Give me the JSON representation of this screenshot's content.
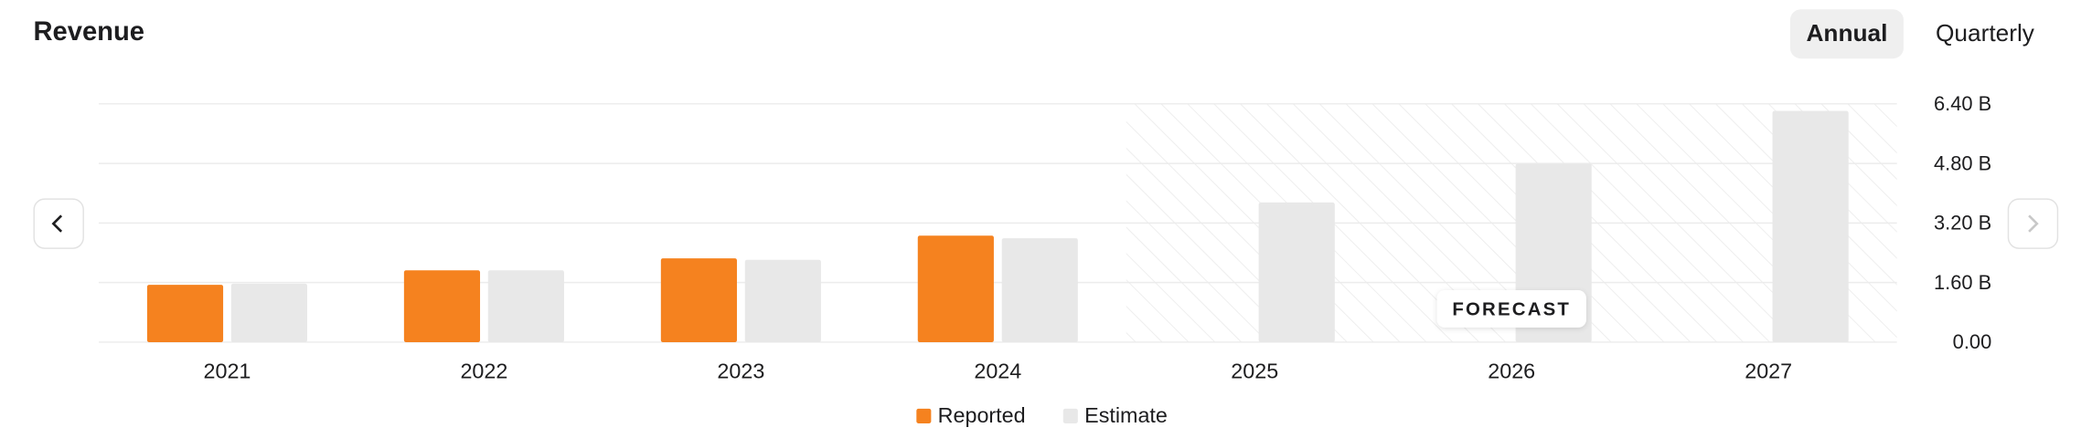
{
  "header": {
    "title": "Revenue",
    "tabs": [
      "Annual",
      "Quarterly"
    ]
  },
  "chart_data": {
    "type": "bar",
    "categories": [
      "2021",
      "2022",
      "2023",
      "2024",
      "2025",
      "2026",
      "2027"
    ],
    "series": [
      {
        "name": "Reported",
        "color": "#f5821f",
        "values": [
          1.54,
          1.93,
          2.25,
          2.86,
          null,
          null,
          null
        ]
      },
      {
        "name": "Estimate",
        "color": "#e8e8e8",
        "values": [
          1.57,
          1.93,
          2.21,
          2.79,
          3.75,
          4.79,
          6.21
        ]
      }
    ],
    "ylim": [
      0,
      6.4
    ],
    "yticks": [
      {
        "value": 0,
        "label": "0.00"
      },
      {
        "value": 1.6,
        "label": "1.60 B"
      },
      {
        "value": 3.2,
        "label": "3.20 B"
      },
      {
        "value": 4.8,
        "label": "4.80 B"
      },
      {
        "value": 6.4,
        "label": "6.40 B"
      }
    ],
    "grid": true,
    "annotation": "FORECAST"
  }
}
